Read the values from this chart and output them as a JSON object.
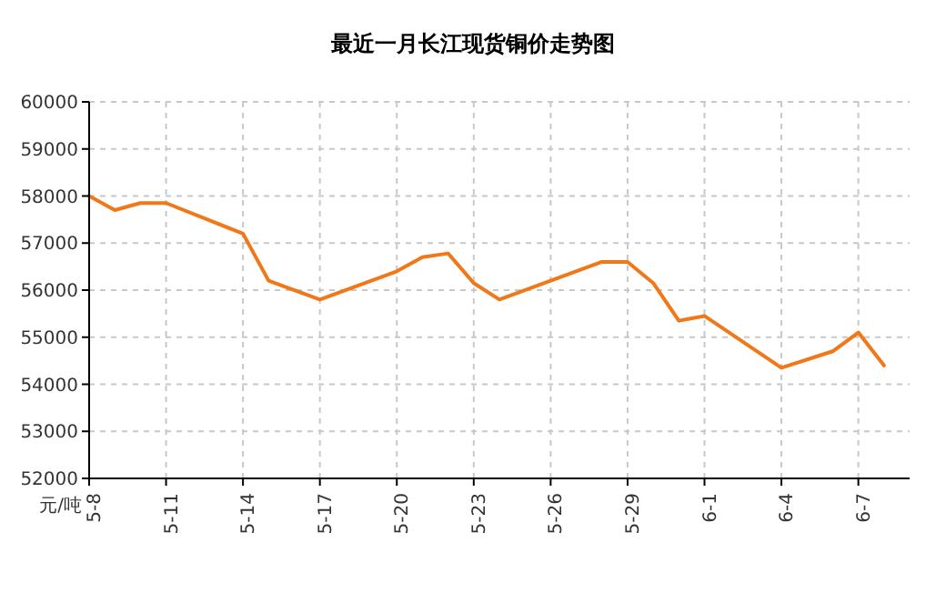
{
  "chart_data": {
    "type": "line",
    "title": "最近一月长江现货铜价走势图",
    "ylabel": "元/吨",
    "x": [
      "--05-08",
      "--05-09",
      "--05-10",
      "--05-11",
      "--05-14",
      "--05-15",
      "--05-17",
      "--05-20",
      "--05-21",
      "--05-22",
      "--05-23",
      "--05-24",
      "--05-28",
      "--05-29",
      "--05-30",
      "--05-31",
      "--06-01",
      "--06-04",
      "--06-06",
      "--06-07",
      "--06-08"
    ],
    "series": [
      {
        "color": "#f07818",
        "values": [
          58000,
          57700,
          57850,
          57850,
          57200,
          56200,
          55800,
          56400,
          56700,
          56780,
          56150,
          55800,
          56600,
          56600,
          56150,
          55350,
          55450,
          54350,
          54700,
          55100,
          54400
        ]
      }
    ],
    "xlim": [
      "--05-08",
      "--06-09"
    ],
    "xticks": [
      {
        "value": "--05-08",
        "label": "5-8"
      },
      {
        "value": "--05-11",
        "label": "5-11"
      },
      {
        "value": "--05-14",
        "label": "5-14"
      },
      {
        "value": "--05-17",
        "label": "5-17"
      },
      {
        "value": "--05-20",
        "label": "5-20"
      },
      {
        "value": "--05-23",
        "label": "5-23"
      },
      {
        "value": "--05-26",
        "label": "5-26"
      },
      {
        "value": "--05-29",
        "label": "5-29"
      },
      {
        "value": "--06-01",
        "label": "6-1"
      },
      {
        "value": "--06-04",
        "label": "6-4"
      },
      {
        "value": "--06-07",
        "label": "6-7"
      }
    ],
    "ylim": [
      52000,
      60000
    ],
    "yticks": [
      52000,
      53000,
      54000,
      55000,
      56000,
      57000,
      58000,
      59000,
      60000
    ],
    "grid": true,
    "marker": "none",
    "line_style": "solid"
  }
}
